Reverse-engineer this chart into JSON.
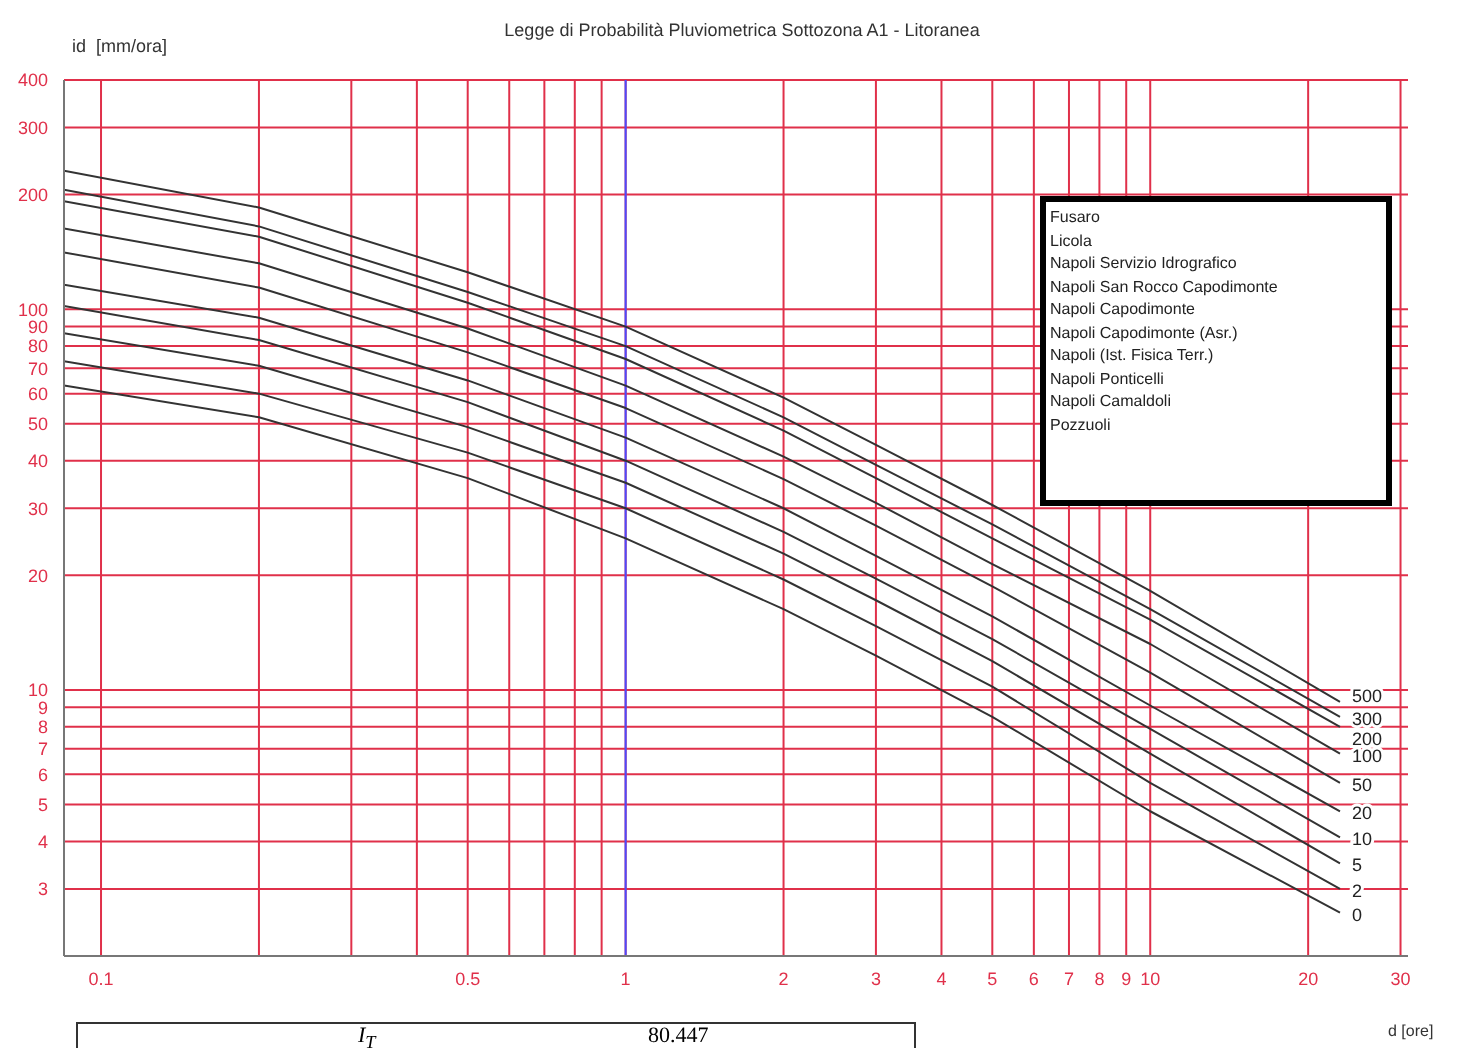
{
  "chart_data": {
    "type": "line",
    "title": "Legge di Probabilità Pluviometrica  Sottozona A1  - Litoranea",
    "xlabel": "d [ore]",
    "ylabel": "id  [mm/ora]",
    "log": "xy",
    "grid": true,
    "legend": false,
    "marker": "none",
    "line_style": "solid",
    "x": [
      0.085,
      0.2,
      0.5,
      1,
      2,
      3,
      5,
      10,
      23
    ],
    "xlim": [
      0.085,
      31
    ],
    "xticks": [
      0.1,
      {
        "value": 0.2,
        "label": null
      },
      {
        "value": 0.3,
        "label": null
      },
      {
        "value": 0.4,
        "label": null
      },
      0.5,
      {
        "value": 0.6,
        "label": null
      },
      {
        "value": 0.7,
        "label": null
      },
      {
        "value": 0.8,
        "label": null
      },
      {
        "value": 0.9,
        "label": null
      },
      1,
      2,
      3,
      4,
      5,
      6,
      7,
      8,
      9,
      10,
      20,
      30
    ],
    "ylim": [
      2,
      400
    ],
    "yticks": [
      3,
      4,
      5,
      6,
      7,
      8,
      9,
      10,
      20,
      30,
      40,
      50,
      60,
      70,
      80,
      90,
      100,
      200,
      300,
      400
    ],
    "ref_lines": [
      {
        "axis": "x",
        "value": 1,
        "color": "#4a4aff"
      }
    ],
    "series": [
      {
        "name": "500",
        "color": "#333333",
        "values": [
          231,
          185,
          125,
          90,
          58.6,
          44,
          30.6,
          18.2,
          9.3
        ]
      },
      {
        "name": "300",
        "color": "#333333",
        "values": [
          206,
          165,
          111,
          80,
          52,
          39,
          27.2,
          16.3,
          8.5
        ]
      },
      {
        "name": "200",
        "color": "#333333",
        "values": [
          192,
          155,
          104,
          74,
          48,
          36,
          25,
          15.3,
          8.0
        ]
      },
      {
        "name": "100",
        "color": "#333333",
        "values": [
          163,
          132,
          89,
          63,
          41,
          31,
          21.4,
          13.2,
          6.8
        ]
      },
      {
        "name": "50",
        "color": "#333333",
        "values": [
          141,
          114,
          77,
          55,
          35.8,
          27,
          18.7,
          11.1,
          5.7
        ]
      },
      {
        "name": "20",
        "color": "#333333",
        "values": [
          116,
          95,
          65,
          46,
          30,
          22.5,
          15.6,
          9.1,
          4.8
        ]
      },
      {
        "name": "10",
        "color": "#333333",
        "values": [
          102,
          83,
          57,
          40,
          26,
          19.6,
          13.6,
          7.9,
          4.1
        ]
      },
      {
        "name": "5",
        "color": "#333333",
        "values": [
          86.5,
          71,
          49,
          35,
          22.8,
          17.2,
          11.9,
          6.8,
          3.5
        ]
      },
      {
        "name": "2",
        "color": "#333333",
        "values": [
          73,
          60,
          42,
          30,
          19.5,
          14.7,
          10.2,
          5.7,
          3.0
        ]
      },
      {
        "name": "0",
        "color": "#333333",
        "values": [
          63,
          52,
          36,
          25,
          16.3,
          12.3,
          8.5,
          4.8,
          2.6
        ]
      }
    ],
    "annotations": [
      "Fusaro",
      "Licola",
      "Napoli Servizio Idrografico",
      "Napoli San Rocco Capodimonte",
      "Napoli Capodimonte",
      "Napoli Capodimonte (Asr.)",
      "Napoli (Ist. Fisica Terr.)",
      "Napoli Ponticelli",
      "Napoli Camaldoli",
      "Pozzuoli",
      "I$_{T}$",
      "80.447"
    ]
  }
}
